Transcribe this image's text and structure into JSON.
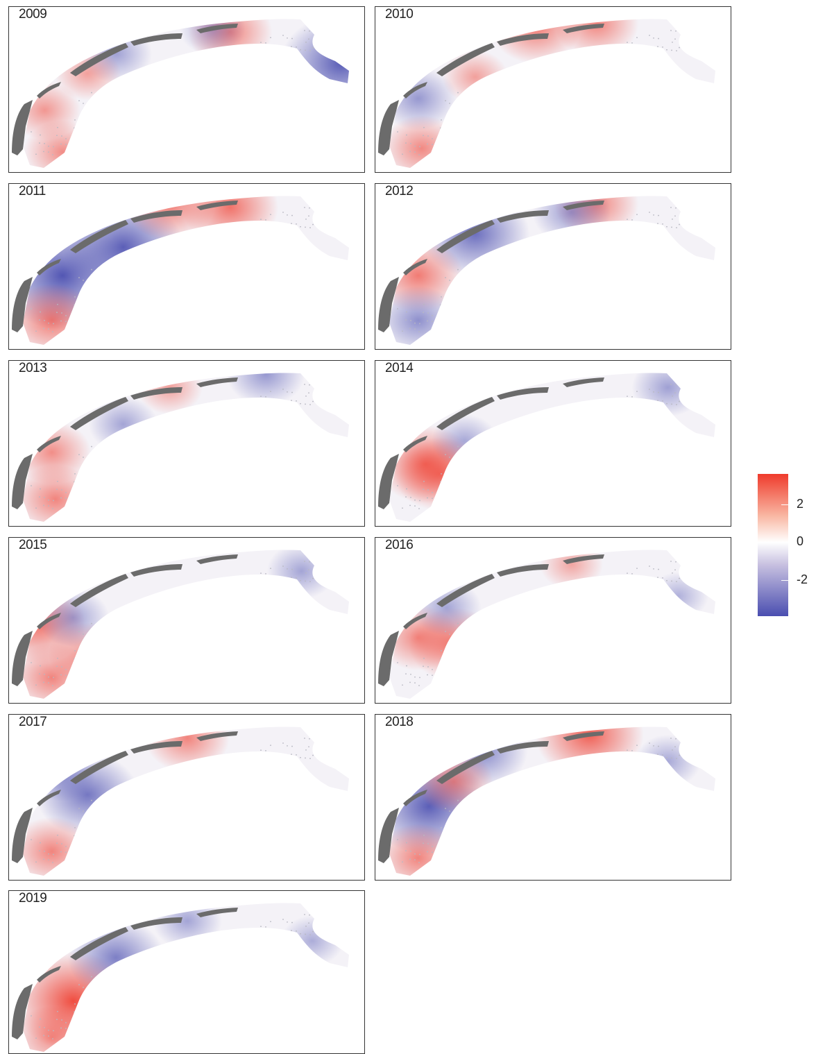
{
  "panels": [
    {
      "year": "2009",
      "spots": [
        [
          "hi",
          0.1,
          0.62,
          1.0
        ],
        [
          "hi",
          0.15,
          0.87,
          1.2
        ],
        [
          "lo",
          0.3,
          0.28,
          1.0
        ],
        [
          "lo",
          0.93,
          0.34,
          2.6
        ],
        [
          "hi",
          0.62,
          0.15,
          1.4
        ],
        [
          "lo",
          0.57,
          0.13,
          0.8
        ],
        [
          "hi",
          0.22,
          0.4,
          0.8
        ]
      ]
    },
    {
      "year": "2010",
      "spots": [
        [
          "hi",
          0.45,
          0.12,
          1.6
        ],
        [
          "hi",
          0.62,
          0.1,
          1.4
        ],
        [
          "lo",
          0.12,
          0.55,
          1.2
        ],
        [
          "hi",
          0.13,
          0.85,
          1.3
        ],
        [
          "hi",
          0.28,
          0.42,
          0.8
        ]
      ]
    },
    {
      "year": "2011",
      "spots": [
        [
          "lo",
          0.15,
          0.55,
          3.0
        ],
        [
          "lo",
          0.32,
          0.38,
          2.6
        ],
        [
          "hi",
          0.12,
          0.82,
          1.6
        ],
        [
          "hi",
          0.45,
          0.12,
          1.6
        ],
        [
          "hi",
          0.62,
          0.14,
          1.8
        ]
      ]
    },
    {
      "year": "2012",
      "spots": [
        [
          "lo",
          0.28,
          0.3,
          2.2
        ],
        [
          "hi",
          0.12,
          0.55,
          1.6
        ],
        [
          "lo",
          0.12,
          0.82,
          1.4
        ],
        [
          "hi",
          0.62,
          0.12,
          1.4
        ],
        [
          "lo",
          0.55,
          0.17,
          1.2
        ]
      ]
    },
    {
      "year": "2013",
      "spots": [
        [
          "hi",
          0.12,
          0.55,
          1.2
        ],
        [
          "hi",
          0.13,
          0.83,
          1.4
        ],
        [
          "lo",
          0.32,
          0.38,
          0.9
        ],
        [
          "lo",
          0.72,
          0.08,
          1.2
        ],
        [
          "hi",
          0.45,
          0.16,
          0.8
        ]
      ]
    },
    {
      "year": "2014",
      "spots": [
        [
          "hi",
          0.14,
          0.62,
          1.8
        ],
        [
          "hi",
          0.18,
          0.68,
          1.6
        ],
        [
          "lo",
          0.82,
          0.16,
          1.0
        ],
        [
          "lo",
          0.25,
          0.48,
          0.8
        ]
      ]
    },
    {
      "year": "2015",
      "spots": [
        [
          "hi",
          0.08,
          0.52,
          1.8
        ],
        [
          "hi",
          0.12,
          0.84,
          1.4
        ],
        [
          "hi",
          0.22,
          0.7,
          1.2
        ],
        [
          "lo",
          0.18,
          0.48,
          1.0
        ],
        [
          "lo",
          0.82,
          0.2,
          0.9
        ]
      ]
    },
    {
      "year": "2016",
      "spots": [
        [
          "hi",
          0.12,
          0.6,
          1.3
        ],
        [
          "hi",
          0.22,
          0.64,
          1.6
        ],
        [
          "lo",
          0.2,
          0.42,
          0.9
        ],
        [
          "lo",
          0.85,
          0.35,
          0.6
        ],
        [
          "hi",
          0.55,
          0.16,
          0.7
        ]
      ]
    },
    {
      "year": "2017",
      "spots": [
        [
          "lo",
          0.22,
          0.48,
          2.0
        ],
        [
          "hi",
          0.12,
          0.82,
          1.4
        ],
        [
          "hi",
          0.5,
          0.14,
          1.4
        ],
        [
          "lo",
          0.15,
          0.36,
          0.8
        ]
      ]
    },
    {
      "year": "2018",
      "spots": [
        [
          "lo",
          0.15,
          0.55,
          2.6
        ],
        [
          "lo",
          0.3,
          0.22,
          1.6
        ],
        [
          "hi",
          0.6,
          0.12,
          2.2
        ],
        [
          "hi",
          0.12,
          0.86,
          1.4
        ],
        [
          "hi",
          0.22,
          0.4,
          1.2
        ],
        [
          "lo",
          0.82,
          0.28,
          0.8
        ]
      ]
    },
    {
      "year": "2019",
      "spots": [
        [
          "hi",
          0.18,
          0.66,
          2.6
        ],
        [
          "hi",
          0.12,
          0.88,
          1.2
        ],
        [
          "lo",
          0.3,
          0.4,
          1.8
        ],
        [
          "lo",
          0.5,
          0.18,
          0.9
        ],
        [
          "lo",
          0.85,
          0.3,
          0.7
        ]
      ]
    }
  ],
  "legend": {
    "colors": {
      "high": "#ef3b2c",
      "mid": "#ffffff",
      "low": "#4a4eb0"
    },
    "ticks": [
      {
        "label": "2",
        "value": 2
      },
      {
        "label": "0",
        "value": 0
      },
      {
        "label": "-2",
        "value": -2
      }
    ],
    "range": [
      -3.9,
      3.6
    ]
  },
  "land_color": "#6b6b6b"
}
